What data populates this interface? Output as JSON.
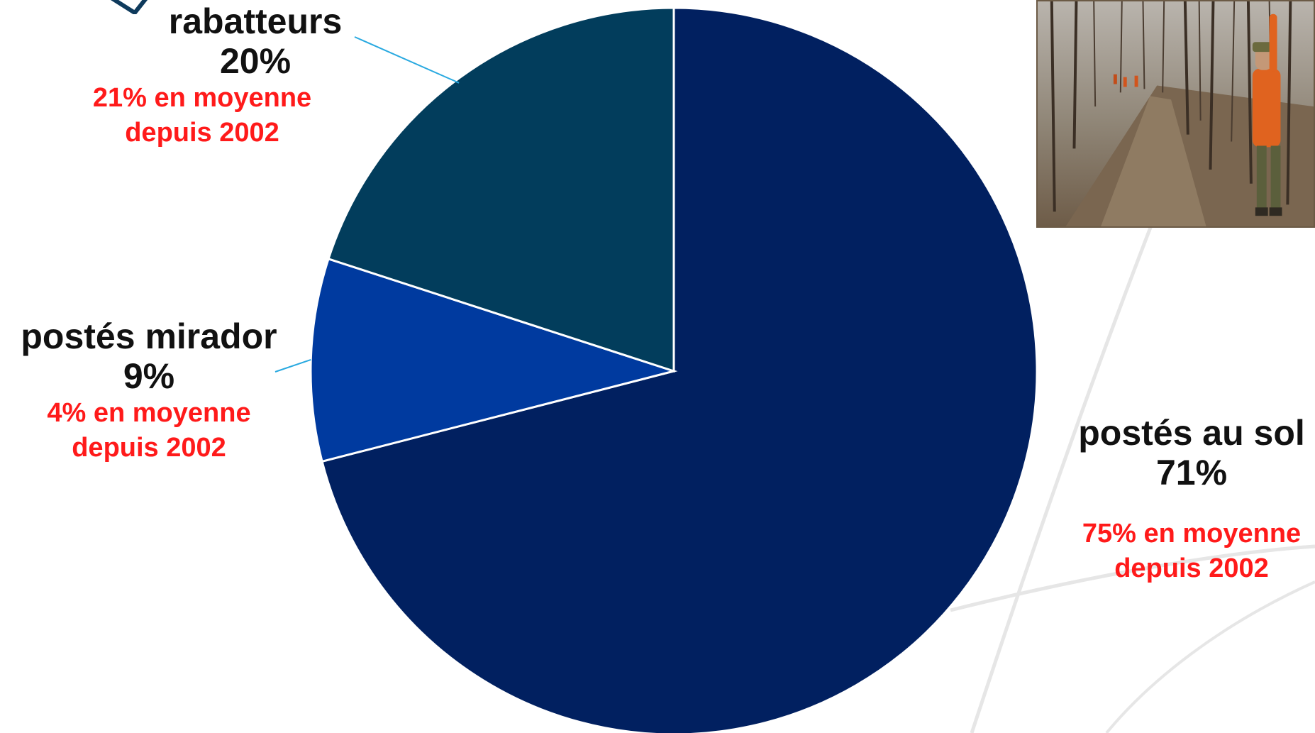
{
  "chart_data": {
    "type": "pie",
    "title": "",
    "slices": [
      {
        "name": "postés au sol",
        "value": 71,
        "value_label": "71%",
        "note": "75% en moyenne depuis 2002",
        "color": "#012060"
      },
      {
        "name": "postés mirador",
        "value": 9,
        "value_label": "9%",
        "note": "4% en moyenne depuis 2002",
        "color": "#003a9f"
      },
      {
        "name": "rabatteurs",
        "value": 20,
        "value_label": "20%",
        "note": "21% en moyenne depuis 2002",
        "color": "#023d5c"
      }
    ],
    "start_angle_deg": 0,
    "direction": "clockwise",
    "slice_border_color": "#ffffff",
    "leader_line_color": "#29a9e0",
    "value_text_color": "#111111",
    "note_text_color": "#ff1a1a"
  },
  "labels": {
    "rabatteurs": {
      "name": "rabatteurs",
      "pct": "20%",
      "avg_line1": "21% en moyenne",
      "avg_line2": "depuis 2002"
    },
    "mirador": {
      "name": "postés mirador",
      "pct": "9%",
      "avg_line1": "4% en moyenne",
      "avg_line2": "depuis 2002"
    },
    "sol": {
      "name": "postés au sol",
      "pct": "71%",
      "avg_line1": "75% en moyenne",
      "avg_line2": "depuis 2002"
    }
  },
  "photo": {
    "icon": "hunter-in-forest-photo"
  },
  "decor": {
    "swoosh_color": "#e6e6e6",
    "corner_shape_color": "#0e3a5c"
  }
}
